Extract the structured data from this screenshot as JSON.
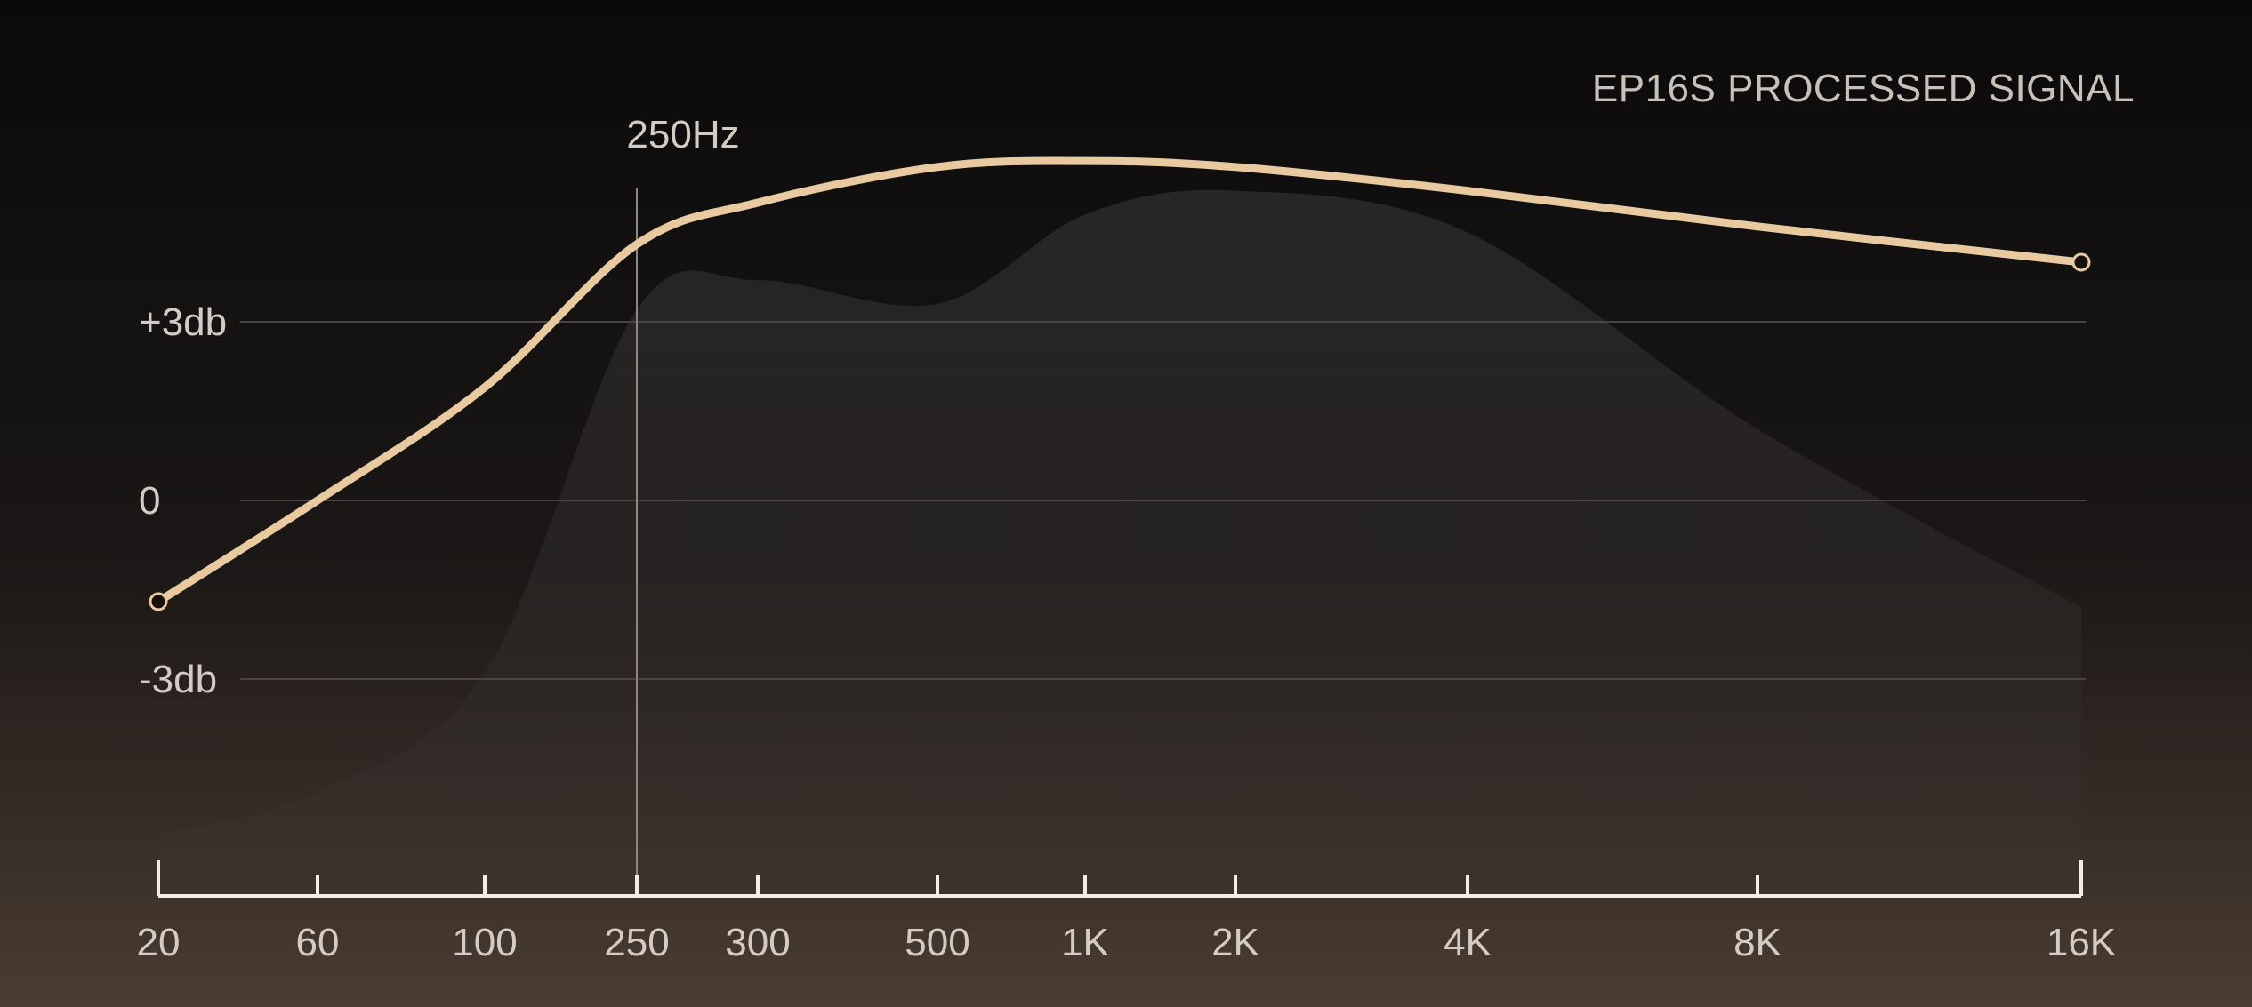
{
  "chart_data": {
    "type": "line",
    "title": "EP16S PROCESSED SIGNAL",
    "xlabel": "",
    "ylabel": "",
    "x_tick_labels": [
      "20",
      "60",
      "100",
      "250",
      "300",
      "500",
      "1K",
      "2K",
      "4K",
      "8K",
      "16K"
    ],
    "y_tick_labels": [
      "+3db",
      "0",
      "-3db"
    ],
    "y_tick_values": [
      3,
      0,
      -3
    ],
    "ylim": [
      -6.2,
      6.0
    ],
    "grid": "horizontal",
    "legend": "none",
    "annotations": [
      {
        "text": "250Hz",
        "x": "250",
        "type": "vertical-line"
      }
    ],
    "series": [
      {
        "x": [
          "20",
          "60",
          "100",
          "250",
          "300",
          "500",
          "1K",
          "2K",
          "4K",
          "8K",
          "16K"
        ],
        "values": [
          -1.7,
          0.0,
          1.9,
          4.3,
          5.0,
          5.6,
          5.7,
          5.6,
          5.2,
          4.6,
          4.0
        ],
        "color": "#e8c9a0"
      }
    ],
    "background_shape": {
      "x": [
        "20",
        "60",
        "100",
        "250",
        "300",
        "500",
        "1K",
        "2K",
        "4K",
        "8K",
        "16K"
      ],
      "values": [
        -5.6,
        -4.9,
        -2.9,
        3.2,
        3.7,
        3.3,
        4.8,
        5.2,
        4.5,
        1.2,
        -1.8
      ],
      "color": "#3a3636"
    }
  }
}
